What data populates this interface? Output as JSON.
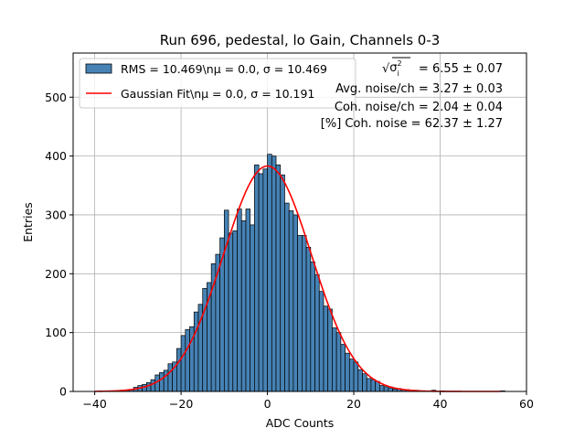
{
  "chart_data": {
    "type": "bar",
    "title": "Run 696, pedestal, lo Gain, Channels 0-3",
    "xlabel": "ADC Counts",
    "ylabel": "Entries",
    "xlim": [
      -45,
      60
    ],
    "ylim": [
      0,
      575
    ],
    "grid": true,
    "legend_placement": "top-left",
    "x_ticks": [
      "−40",
      "−20",
      "0",
      "20",
      "40",
      "60"
    ],
    "y_ticks": [
      "0",
      "100",
      "200",
      "300",
      "400",
      "500"
    ],
    "histogram": {
      "name": "RMS = 10.469\\nμ = 0.0, σ = 10.469",
      "bin_width": 1,
      "bin_starts": [
        -40,
        -39,
        -38,
        -37,
        -36,
        -35,
        -34,
        -33,
        -32,
        -31,
        -30,
        -29,
        -28,
        -27,
        -26,
        -25,
        -24,
        -23,
        -22,
        -21,
        -20,
        -19,
        -18,
        -17,
        -16,
        -15,
        -14,
        -13,
        -12,
        -11,
        -10,
        -9,
        -8,
        -7,
        -6,
        -5,
        -4,
        -3,
        -2,
        -1,
        0,
        1,
        2,
        3,
        4,
        5,
        6,
        7,
        8,
        9,
        10,
        11,
        12,
        13,
        14,
        15,
        16,
        17,
        18,
        19,
        20,
        21,
        22,
        23,
        24,
        25,
        26,
        27,
        28,
        29,
        30,
        31,
        32,
        33,
        34,
        35,
        36,
        37,
        38,
        39,
        40,
        41,
        42,
        43,
        44,
        45,
        46,
        47,
        48,
        49,
        50,
        51,
        52,
        53,
        54
      ],
      "counts": [
        0,
        0,
        0,
        0,
        0,
        0,
        1,
        2,
        3,
        7,
        10,
        12,
        15,
        20,
        28,
        32,
        36,
        47,
        50,
        73,
        95,
        105,
        110,
        135,
        148,
        175,
        185,
        217,
        233,
        261,
        308,
        269,
        273,
        310,
        290,
        310,
        283,
        385,
        370,
        378,
        403,
        400,
        385,
        368,
        320,
        307,
        300,
        265,
        265,
        245,
        220,
        198,
        170,
        145,
        140,
        108,
        100,
        80,
        65,
        55,
        50,
        37,
        30,
        22,
        20,
        17,
        10,
        8,
        6,
        4,
        5,
        3,
        3,
        2,
        2,
        1,
        1,
        0,
        2,
        0,
        1,
        0,
        0,
        0,
        0,
        0,
        0,
        0,
        0,
        0,
        0,
        0,
        0,
        0,
        1
      ]
    },
    "fit": {
      "name": "Gaussian Fit\\nμ = 0.0, σ = 10.191",
      "mu": 0.0,
      "sigma": 10.191,
      "amplitude": 383,
      "x_range": [
        -40,
        54
      ]
    },
    "annotations": [
      {
        "key": "total",
        "value": "= 6.55 ± 0.07"
      },
      {
        "key": "avg",
        "label": "Avg. noise/ch = 3.27 ± 0.03"
      },
      {
        "key": "coh",
        "label": "Coh. noise/ch = 2.04 ± 0.04"
      },
      {
        "key": "pct",
        "label": "[%] Coh. noise = 62.37 ± 1.27"
      }
    ],
    "colors": {
      "bar_fill": "#4682b4",
      "bar_edge": "#000000",
      "fit_line": "#ff0000",
      "grid": "#b0b0b0"
    }
  }
}
